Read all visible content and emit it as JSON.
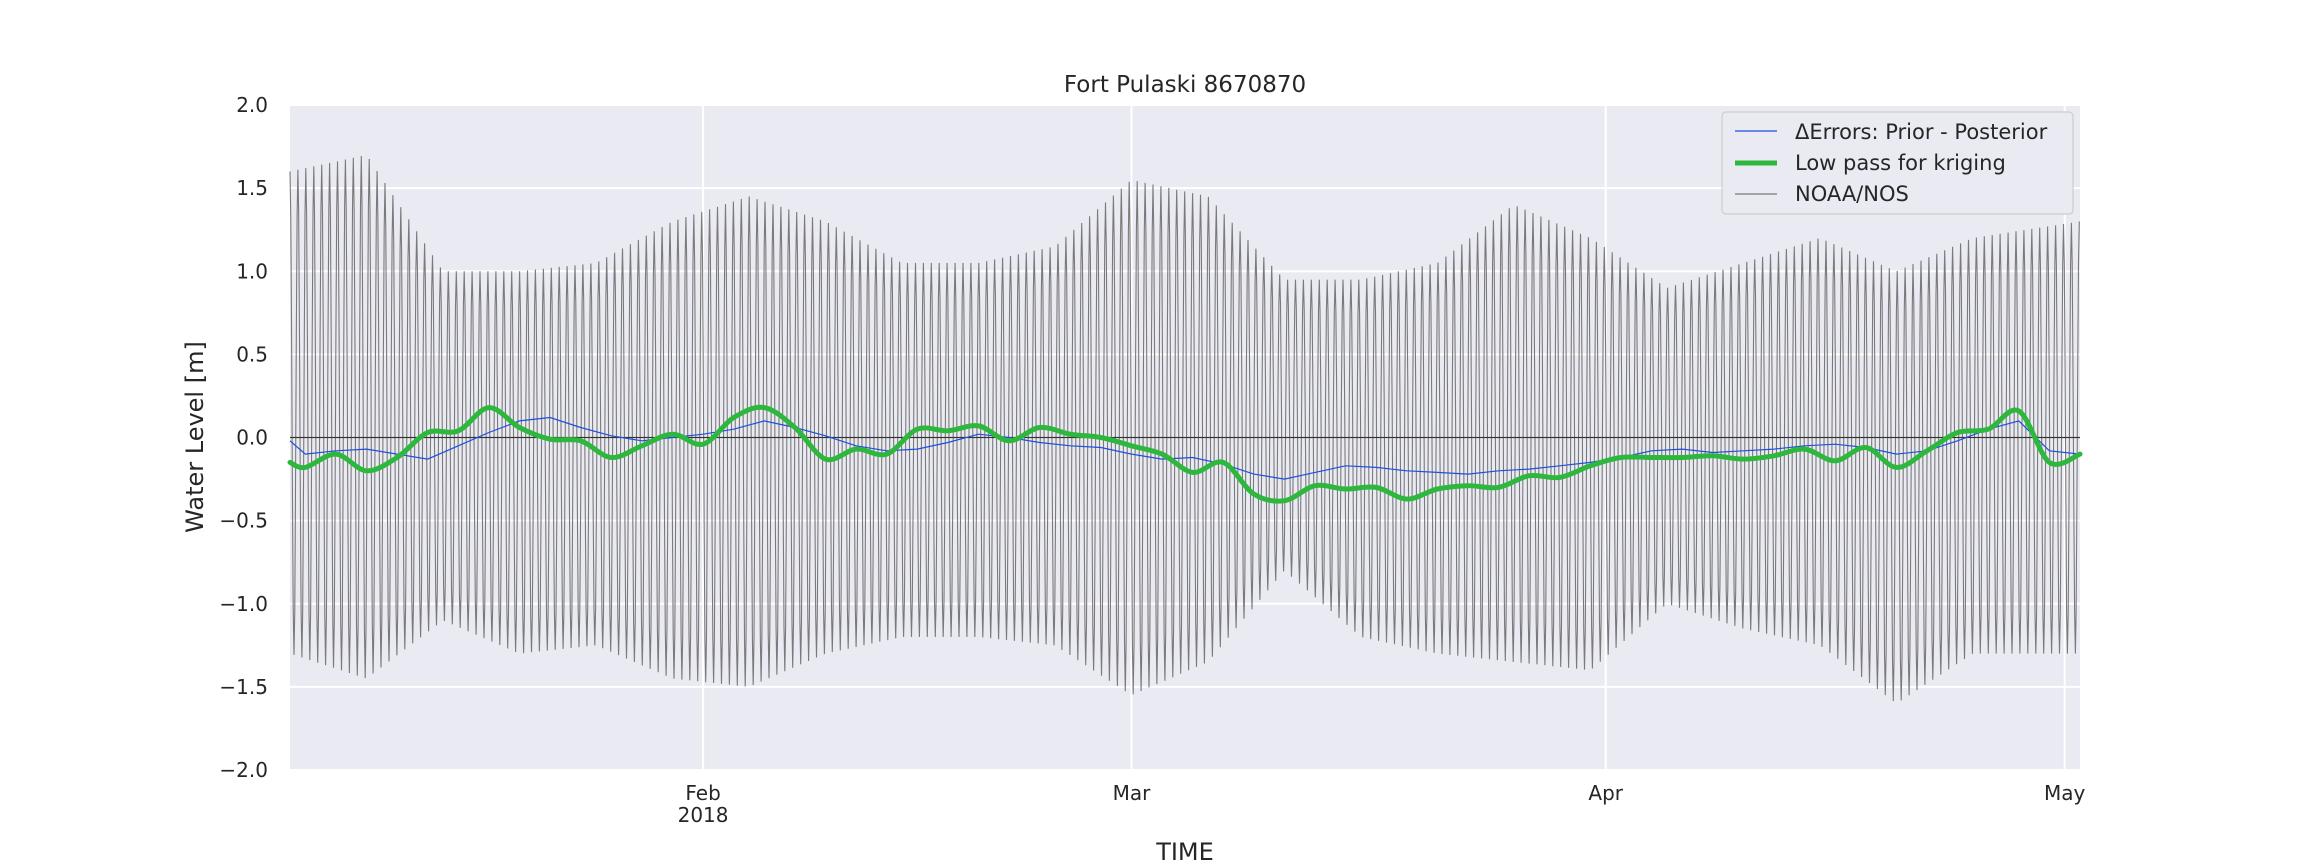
{
  "chart_data": {
    "type": "line",
    "title": "Fort Pulaski  8670870",
    "xlabel": "TIME",
    "ylabel": "Water Level [m]",
    "x_range": [
      "2018-01-05",
      "2018-05-02"
    ],
    "ylim": [
      -2.0,
      2.0
    ],
    "yticks": [
      -2.0,
      -1.5,
      -1.0,
      -0.5,
      0.0,
      0.5,
      1.0,
      1.5,
      2.0
    ],
    "ytick_labels": [
      "−2.0",
      "−1.5",
      "−1.0",
      "−0.5",
      "0.0",
      "0.5",
      "1.0",
      "1.5",
      "2.0"
    ],
    "xticks": [
      {
        "date": "2018-02-01",
        "label": "Feb",
        "sublabel": "2018"
      },
      {
        "date": "2018-03-01",
        "label": "Mar",
        "sublabel": ""
      },
      {
        "date": "2018-04-01",
        "label": "Apr",
        "sublabel": ""
      },
      {
        "date": "2018-05-01",
        "label": "May",
        "sublabel": ""
      }
    ],
    "grid": true,
    "legend_position": "top-right",
    "zero_line": 0.0,
    "series": [
      {
        "name": "ΔErrors: Prior - Posterior",
        "color": "#1f4fe0",
        "style": "thin",
        "x": [
          "2018-01-05",
          "2018-01-06",
          "2018-01-08",
          "2018-01-10",
          "2018-01-12",
          "2018-01-14",
          "2018-01-16",
          "2018-01-18",
          "2018-01-20",
          "2018-01-22",
          "2018-01-24",
          "2018-01-26",
          "2018-01-28",
          "2018-01-30",
          "2018-02-01",
          "2018-02-03",
          "2018-02-05",
          "2018-02-07",
          "2018-02-09",
          "2018-02-11",
          "2018-02-13",
          "2018-02-15",
          "2018-02-17",
          "2018-02-19",
          "2018-02-21",
          "2018-02-23",
          "2018-02-25",
          "2018-02-27",
          "2018-03-01",
          "2018-03-03",
          "2018-03-05",
          "2018-03-07",
          "2018-03-09",
          "2018-03-11",
          "2018-03-13",
          "2018-03-15",
          "2018-03-17",
          "2018-03-19",
          "2018-03-21",
          "2018-03-23",
          "2018-03-25",
          "2018-03-27",
          "2018-03-29",
          "2018-03-31",
          "2018-04-02",
          "2018-04-04",
          "2018-04-06",
          "2018-04-08",
          "2018-04-10",
          "2018-04-12",
          "2018-04-14",
          "2018-04-16",
          "2018-04-18",
          "2018-04-20",
          "2018-04-22",
          "2018-04-24",
          "2018-04-26",
          "2018-04-28",
          "2018-04-30",
          "2018-05-02"
        ],
        "values": [
          -0.02,
          -0.1,
          -0.08,
          -0.07,
          -0.1,
          -0.13,
          -0.05,
          0.03,
          0.1,
          0.12,
          0.06,
          0.01,
          -0.02,
          0.0,
          0.02,
          0.05,
          0.1,
          0.06,
          0.01,
          -0.05,
          -0.08,
          -0.07,
          -0.03,
          0.02,
          0.0,
          -0.03,
          -0.05,
          -0.06,
          -0.1,
          -0.13,
          -0.12,
          -0.16,
          -0.22,
          -0.25,
          -0.21,
          -0.17,
          -0.18,
          -0.2,
          -0.21,
          -0.22,
          -0.2,
          -0.19,
          -0.17,
          -0.15,
          -0.12,
          -0.08,
          -0.07,
          -0.09,
          -0.08,
          -0.07,
          -0.05,
          -0.04,
          -0.06,
          -0.1,
          -0.08,
          -0.02,
          0.05,
          0.1,
          -0.08,
          -0.1
        ]
      },
      {
        "name": "Low pass for kriging",
        "color": "#2db83d",
        "style": "thick",
        "x": [
          "2018-01-05",
          "2018-01-06",
          "2018-01-08",
          "2018-01-10",
          "2018-01-12",
          "2018-01-14",
          "2018-01-16",
          "2018-01-18",
          "2018-01-20",
          "2018-01-22",
          "2018-01-24",
          "2018-01-26",
          "2018-01-28",
          "2018-01-30",
          "2018-02-01",
          "2018-02-03",
          "2018-02-05",
          "2018-02-07",
          "2018-02-09",
          "2018-02-11",
          "2018-02-13",
          "2018-02-15",
          "2018-02-17",
          "2018-02-19",
          "2018-02-21",
          "2018-02-23",
          "2018-02-25",
          "2018-02-27",
          "2018-03-01",
          "2018-03-03",
          "2018-03-05",
          "2018-03-07",
          "2018-03-09",
          "2018-03-11",
          "2018-03-13",
          "2018-03-15",
          "2018-03-17",
          "2018-03-19",
          "2018-03-21",
          "2018-03-23",
          "2018-03-25",
          "2018-03-27",
          "2018-03-29",
          "2018-03-31",
          "2018-04-02",
          "2018-04-04",
          "2018-04-06",
          "2018-04-08",
          "2018-04-10",
          "2018-04-12",
          "2018-04-14",
          "2018-04-16",
          "2018-04-18",
          "2018-04-20",
          "2018-04-22",
          "2018-04-24",
          "2018-04-26",
          "2018-04-28",
          "2018-04-30",
          "2018-05-02"
        ],
        "values": [
          -0.15,
          -0.18,
          -0.1,
          -0.2,
          -0.12,
          0.03,
          0.04,
          0.18,
          0.06,
          -0.01,
          -0.02,
          -0.12,
          -0.05,
          0.02,
          -0.04,
          0.12,
          0.18,
          0.06,
          -0.13,
          -0.07,
          -0.1,
          0.05,
          0.04,
          0.07,
          -0.02,
          0.06,
          0.02,
          0.0,
          -0.05,
          -0.1,
          -0.21,
          -0.15,
          -0.34,
          -0.38,
          -0.29,
          -0.31,
          -0.3,
          -0.37,
          -0.31,
          -0.29,
          -0.3,
          -0.23,
          -0.24,
          -0.17,
          -0.12,
          -0.12,
          -0.12,
          -0.11,
          -0.13,
          -0.11,
          -0.07,
          -0.14,
          -0.06,
          -0.18,
          -0.08,
          0.03,
          0.05,
          0.16,
          -0.15,
          -0.1
        ]
      },
      {
        "name": "NOAA/NOS",
        "color": "#7a7a7a",
        "style": "thin",
        "x": [
          "2018-01-05",
          "2018-01-10",
          "2018-01-15",
          "2018-01-20",
          "2018-01-25",
          "2018-01-30",
          "2018-02-04",
          "2018-02-09",
          "2018-02-14",
          "2018-02-19",
          "2018-02-24",
          "2018-03-01",
          "2018-03-06",
          "2018-03-11",
          "2018-03-16",
          "2018-03-21",
          "2018-03-26",
          "2018-03-31",
          "2018-04-05",
          "2018-04-10",
          "2018-04-15",
          "2018-04-20",
          "2018-04-25",
          "2018-05-02"
        ],
        "high_tide_envelope": [
          1.6,
          1.7,
          1.0,
          1.0,
          1.05,
          1.3,
          1.45,
          1.3,
          1.05,
          1.05,
          1.15,
          1.55,
          1.45,
          0.95,
          0.95,
          1.05,
          1.4,
          1.2,
          0.9,
          1.05,
          1.2,
          1.0,
          1.2,
          1.3
        ],
        "low_tide_envelope": [
          -1.3,
          -1.45,
          -1.1,
          -1.3,
          -1.25,
          -1.45,
          -1.5,
          -1.3,
          -1.2,
          -1.2,
          -1.25,
          -1.55,
          -1.35,
          -0.8,
          -1.2,
          -1.3,
          -1.35,
          -1.4,
          -1.0,
          -1.15,
          -1.25,
          -1.6,
          -1.3,
          -1.3
        ],
        "semidiurnal_period_hours": 12.42
      }
    ]
  }
}
